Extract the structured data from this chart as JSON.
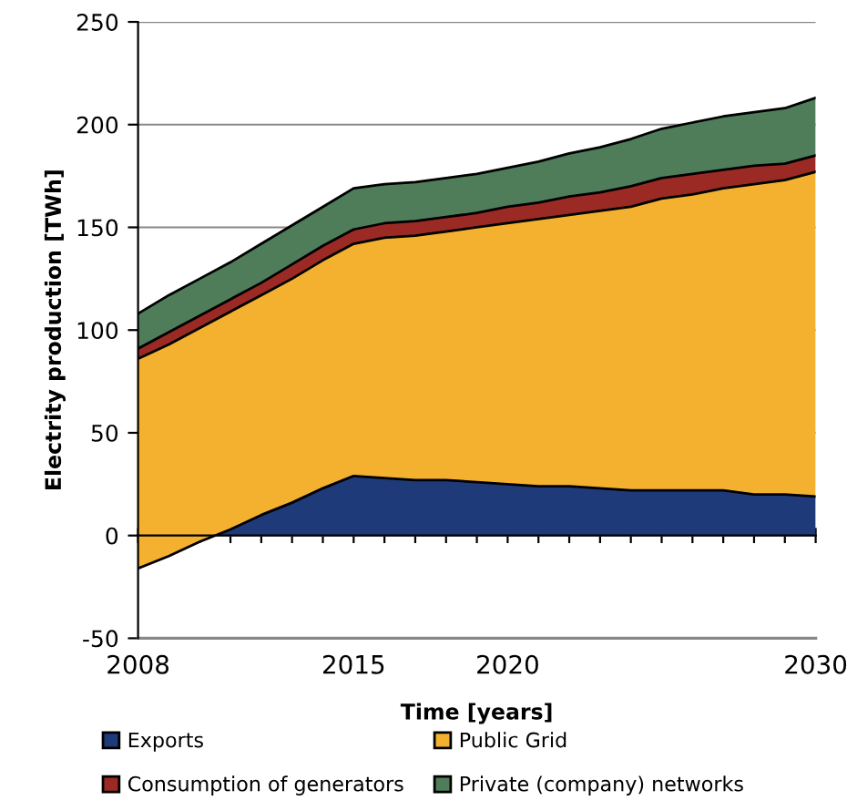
{
  "chart_data": {
    "type": "area",
    "stacked": true,
    "xlabel": "Time [years]",
    "ylabel": "Electrity production [TWh]",
    "x": [
      2008,
      2009,
      2010,
      2011,
      2012,
      2013,
      2014,
      2015,
      2016,
      2017,
      2018,
      2019,
      2020,
      2021,
      2022,
      2023,
      2024,
      2025,
      2026,
      2027,
      2028,
      2029,
      2030
    ],
    "series": [
      {
        "name": "Exports",
        "color": "#1f3a78",
        "values": [
          -16,
          -10,
          -3,
          3,
          10,
          16,
          23,
          29,
          28,
          27,
          27,
          26,
          25,
          24,
          24,
          23,
          22,
          22,
          22,
          22,
          20,
          20,
          19
        ]
      },
      {
        "name": "Public Grid",
        "color": "#f4b130",
        "values": [
          102,
          103,
          104,
          106,
          107,
          109,
          111,
          113,
          117,
          119,
          121,
          124,
          127,
          130,
          132,
          135,
          138,
          142,
          144,
          147,
          151,
          153,
          158
        ]
      },
      {
        "name": "Consumption of generators",
        "color": "#9b2a25",
        "values": [
          5,
          6,
          6,
          6,
          6,
          7,
          7,
          7,
          7,
          7,
          7,
          7,
          8,
          8,
          9,
          9,
          10,
          10,
          10,
          9,
          9,
          8,
          8
        ]
      },
      {
        "name": "Private (company) networks",
        "color": "#4f7d5a",
        "values": [
          17,
          18,
          18,
          18,
          19,
          19,
          19,
          20,
          19,
          19,
          19,
          19,
          19,
          20,
          21,
          22,
          23,
          24,
          25,
          26,
          26,
          27,
          28
        ]
      }
    ],
    "xlim": [
      2008,
      2030
    ],
    "xticks": [
      {
        "value": 2008,
        "label": "2008"
      },
      {
        "value": 2009,
        "label": null
      },
      {
        "value": 2010,
        "label": null
      },
      {
        "value": 2011,
        "label": null
      },
      {
        "value": 2012,
        "label": null
      },
      {
        "value": 2013,
        "label": null
      },
      {
        "value": 2014,
        "label": null
      },
      {
        "value": 2015,
        "label": "2015"
      },
      {
        "value": 2016,
        "label": null
      },
      {
        "value": 2017,
        "label": null
      },
      {
        "value": 2018,
        "label": null
      },
      {
        "value": 2019,
        "label": null
      },
      {
        "value": 2020,
        "label": "2020"
      },
      {
        "value": 2021,
        "label": null
      },
      {
        "value": 2022,
        "label": null
      },
      {
        "value": 2023,
        "label": null
      },
      {
        "value": 2024,
        "label": null
      },
      {
        "value": 2025,
        "label": null
      },
      {
        "value": 2026,
        "label": null
      },
      {
        "value": 2027,
        "label": null
      },
      {
        "value": 2028,
        "label": null
      },
      {
        "value": 2029,
        "label": null
      },
      {
        "value": 2030,
        "label": "2030"
      }
    ],
    "ylim": [
      -50,
      250
    ],
    "yticks": [
      -50,
      0,
      50,
      100,
      150,
      200,
      250
    ],
    "grid": "y",
    "legend": "bottom"
  }
}
